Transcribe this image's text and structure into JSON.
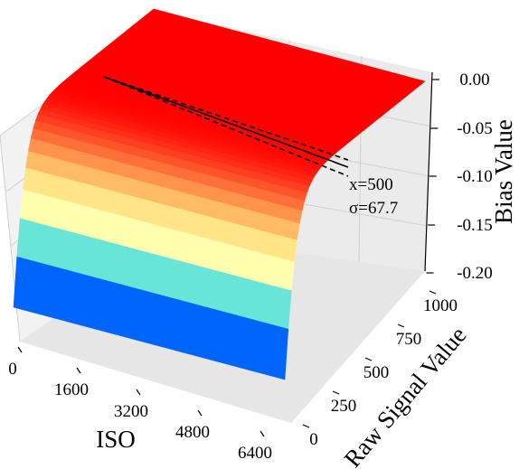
{
  "chart_data": {
    "type": "surface",
    "title": "",
    "colormap": "rainbow",
    "xlabel": "ISO",
    "ylabel": "Raw Signal Value",
    "zlabel": "Bias Value",
    "x_ticks": [
      "0",
      "1600",
      "3200",
      "4800",
      "6400"
    ],
    "y_ticks": [
      "0",
      "250",
      "500",
      "750",
      "1000"
    ],
    "z_ticks": [
      "0.00",
      "-0.05",
      "-0.10",
      "-0.15",
      "-0.20"
    ],
    "x_range": [
      0,
      6400
    ],
    "y_range": [
      0,
      1000
    ],
    "z_range": [
      -0.2,
      0
    ],
    "grid": true,
    "surface_description": {
      "bias_at_signal_0": -0.2,
      "bias_at_high_signal": 0.0,
      "shape": "exponential rise from -0.20 at low signal to ~0.00 at high signal, nearly uniform across ISO"
    },
    "annotation": {
      "lines": [
        "x=500",
        "σ=67.7"
      ],
      "curve_style": "solid center line with dashed upper/lower bounds"
    }
  }
}
